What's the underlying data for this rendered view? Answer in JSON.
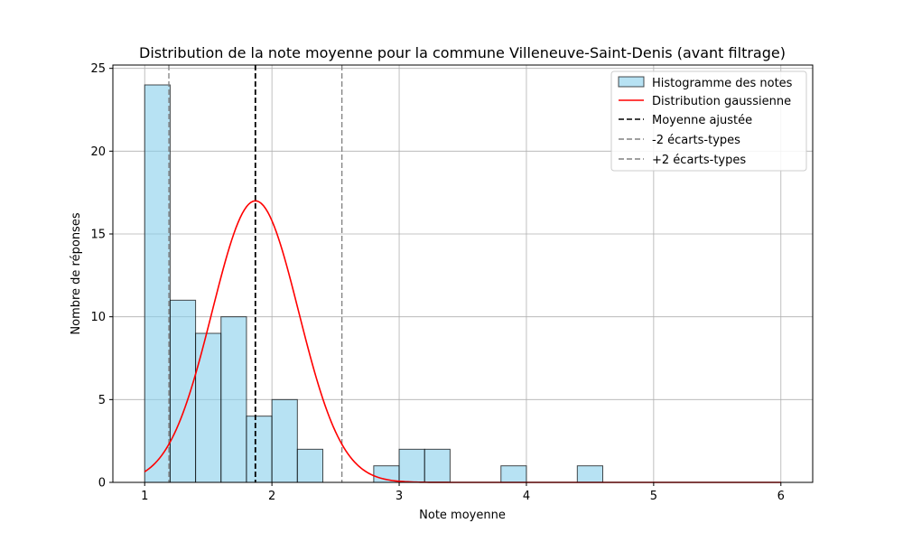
{
  "chart_data": {
    "type": "bar",
    "title": "Distribution de la note moyenne pour la commune Villeneuve-Saint-Denis (avant filtrage)",
    "xlabel": "Note moyenne",
    "ylabel": "Nombre de réponses",
    "xlim": [
      0.75,
      6.25
    ],
    "ylim": [
      0,
      25.2
    ],
    "xticks": [
      "1",
      "2",
      "3",
      "4",
      "5",
      "6"
    ],
    "yticks": [
      "0",
      "5",
      "10",
      "15",
      "20",
      "25"
    ],
    "grid": true,
    "legend_position": "top-right",
    "histogram": {
      "name": "Histogramme des notes",
      "bin_edges": [
        1.0,
        1.2,
        1.4,
        1.6,
        1.8,
        2.0,
        2.2,
        2.4,
        2.6,
        2.8,
        3.0,
        3.2,
        3.4,
        3.6,
        3.8,
        4.0,
        4.2,
        4.4
      ],
      "counts": [
        24,
        11,
        9,
        10,
        4,
        5,
        2,
        0,
        0,
        1,
        2,
        2,
        0,
        0,
        1,
        0,
        0,
        1
      ],
      "color": "#87ceeb"
    },
    "gaussian": {
      "name": "Distribution gaussienne",
      "mean": 1.87,
      "std": 0.34,
      "peak": 17.0,
      "x_range": [
        1,
        6
      ],
      "color": "#ff0000"
    },
    "mean_line": {
      "name": "Moyenne ajustée",
      "x": 1.87,
      "color": "#000000"
    },
    "minus_2sd_line": {
      "name": "-2 écarts-types",
      "x": 1.19,
      "color": "#808080"
    },
    "plus_2sd_line": {
      "name": "+2 écarts-types",
      "x": 2.55,
      "color": "#808080"
    }
  }
}
